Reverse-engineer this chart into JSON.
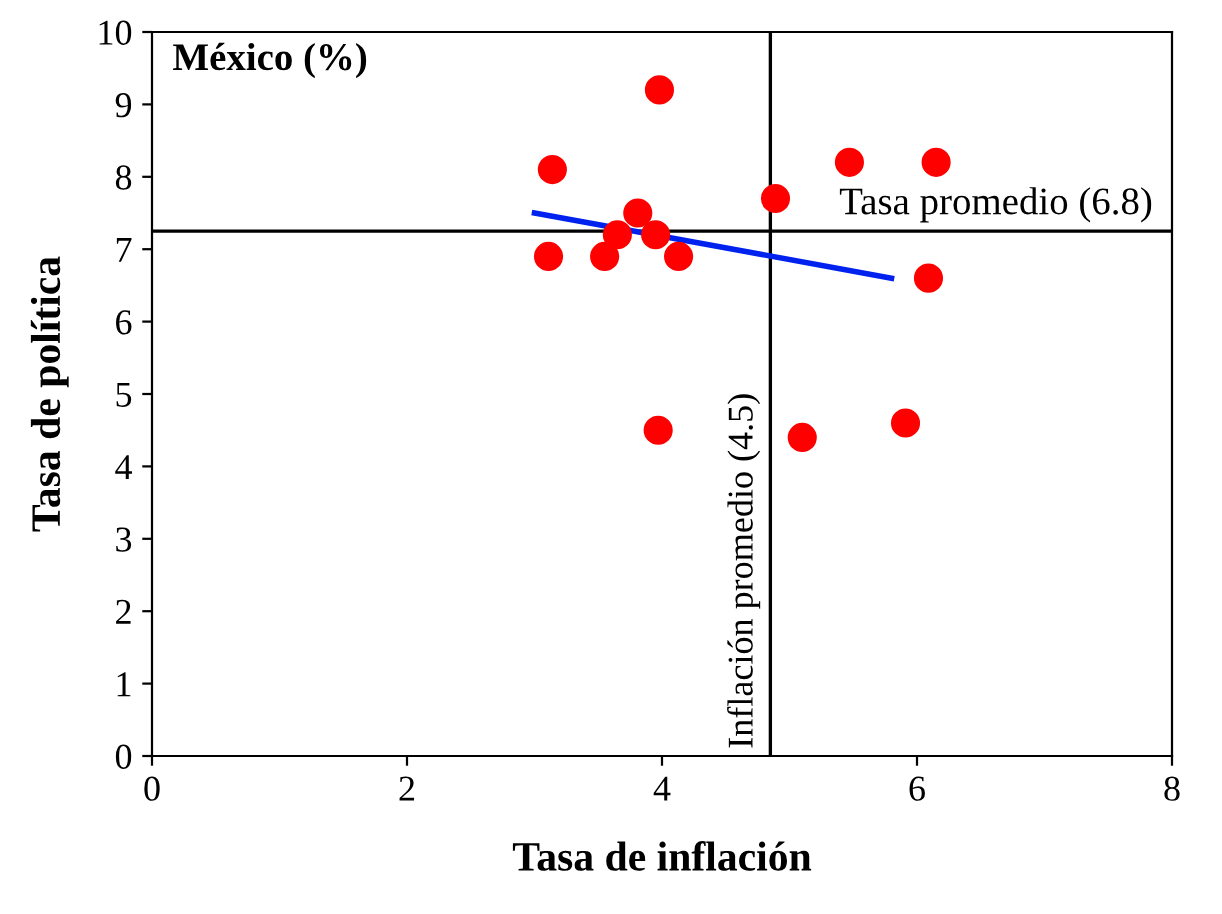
{
  "chart_data": {
    "type": "scatter",
    "xlabel": "Tasa de inflación",
    "ylabel": "Tasa de política",
    "annotations": [
      {
        "text": "México (%)"
      }
    ],
    "series": [
      {
        "color": "#ff0000",
        "marker": "circle",
        "x": [
          3.14,
          3.98,
          5.47,
          6.15,
          4.89,
          3.81,
          3.65,
          3.95,
          3.11,
          3.55,
          4.13,
          6.09,
          3.97,
          5.1,
          5.91
        ],
        "values": [
          8.1,
          9.2,
          8.2,
          8.2,
          7.7,
          7.5,
          7.2,
          7.2,
          6.9,
          6.9,
          6.9,
          6.6,
          4.5,
          4.4,
          4.6
        ]
      },
      {
        "type": "line",
        "color": "#0022ee",
        "marker": "none",
        "x": [
          3.0,
          5.8
        ],
        "values": [
          7.5,
          6.6
        ]
      }
    ],
    "ref_lines": [
      {
        "axis": "x",
        "value": 4.85,
        "label": "Inflación promedio (4.5)",
        "color": "#000000"
      },
      {
        "axis": "y",
        "value": 7.25,
        "label": "Tasa promedio (6.8)",
        "color": "#000000"
      }
    ],
    "xlim": [
      0,
      8
    ],
    "xticks": [
      0,
      2,
      4,
      6,
      8
    ],
    "ylim": [
      0,
      10
    ],
    "yticks": [
      0,
      1,
      2,
      3,
      4,
      5,
      6,
      7,
      8,
      9,
      10
    ],
    "grid": false,
    "legend": false
  }
}
